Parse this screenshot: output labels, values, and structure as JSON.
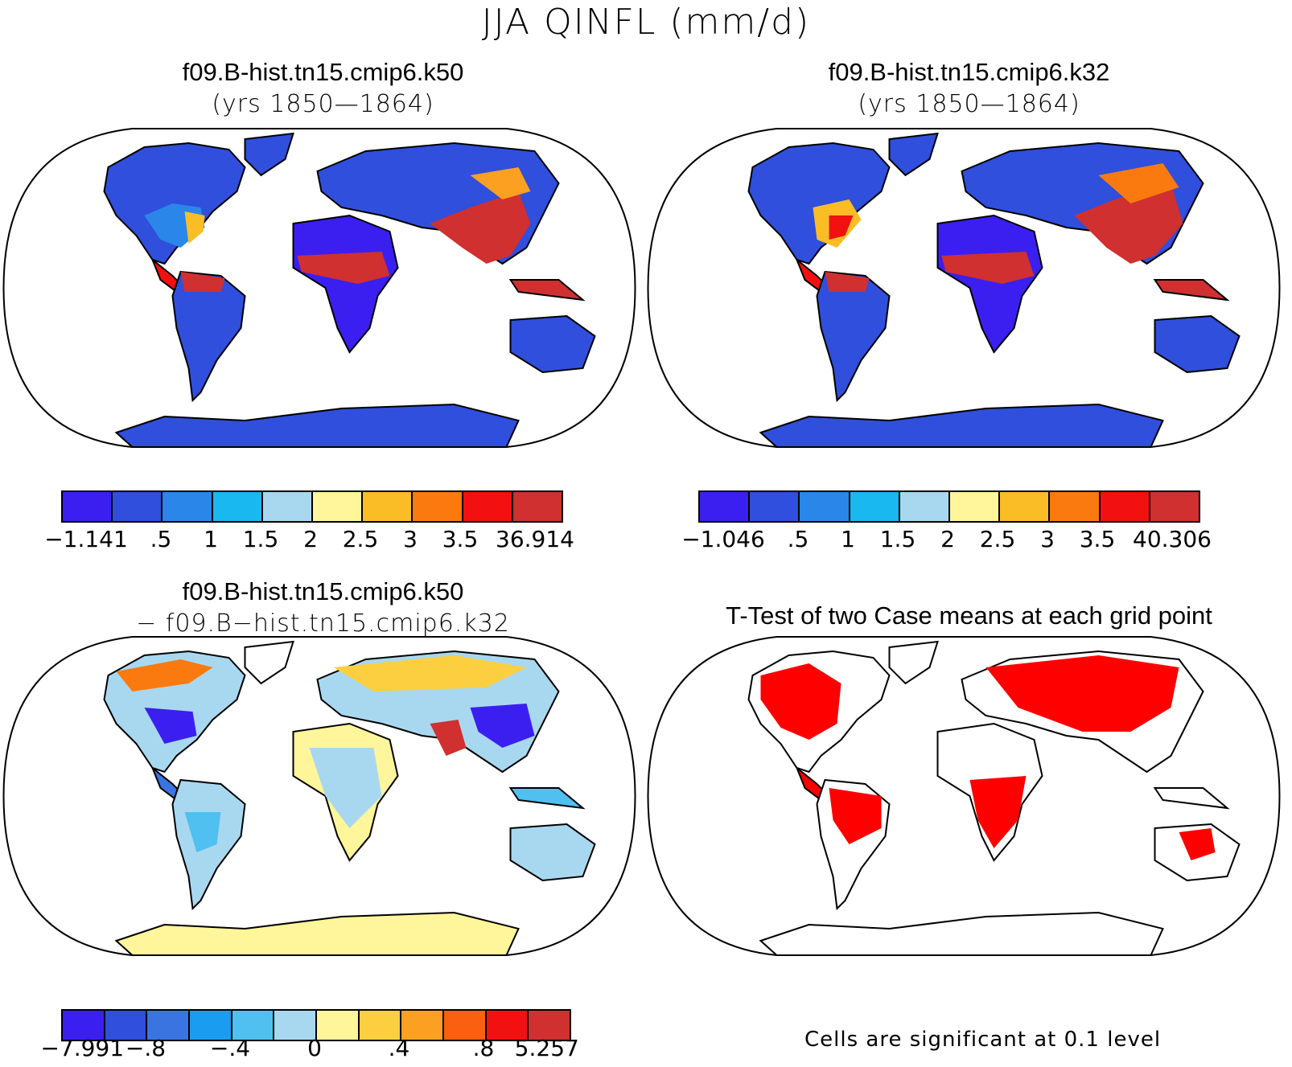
{
  "title": "JJA QINFL (mm/d)",
  "panels": [
    {
      "title_line1": "f09.B-hist.tn15.cmip6.k50",
      "title_line2": "(yrs 1850—1864)",
      "colorbar": {
        "colors": [
          "#3b1ff0",
          "#2f4fdc",
          "#2a86e8",
          "#19b8f0",
          "#a8d8f0",
          "#fff59a",
          "#fbbd25",
          "#fa7a10",
          "#f21010",
          "#d03030"
        ],
        "labels": [
          "−1.141",
          ".5",
          "1",
          "1.5",
          "2",
          "2.5",
          "3",
          "3.5",
          "36.914"
        ]
      }
    },
    {
      "title_line1": "f09.B-hist.tn15.cmip6.k32",
      "title_line2": "(yrs 1850—1864)",
      "colorbar": {
        "colors": [
          "#3b1ff0",
          "#2f4fdc",
          "#2a86e8",
          "#19b8f0",
          "#a8d8f0",
          "#fff59a",
          "#fbbd25",
          "#fa7a10",
          "#f21010",
          "#d03030"
        ],
        "labels": [
          "−1.046",
          ".5",
          "1",
          "1.5",
          "2",
          "2.5",
          "3",
          "3.5",
          "40.306"
        ]
      }
    },
    {
      "title_line1": "f09.B-hist.tn15.cmip6.k50",
      "title_line2": "− f09.B−hist.tn15.cmip6.k32",
      "colorbar": {
        "colors": [
          "#3b1ff0",
          "#2f4fdc",
          "#3a74e0",
          "#1a9cf0",
          "#4fc0f0",
          "#a8d8f0",
          "#fff59a",
          "#fbcf40",
          "#fba020",
          "#fa6010",
          "#f21010",
          "#d03030"
        ],
        "labels": [
          "−7.991",
          "−.8",
          "−.4",
          "0",
          ".4",
          ".8",
          "5.257"
        ]
      }
    },
    {
      "title_line1": "T-Test of two Case means at each grid point",
      "note": "Cells are significant at 0.1 level"
    }
  ],
  "colors": {
    "land_low": "#3a4fe0",
    "land_mid": "#2a86e8",
    "land_high": "#d03030",
    "signif": "#ff0000",
    "antarctica_diff": "#fff59a"
  }
}
